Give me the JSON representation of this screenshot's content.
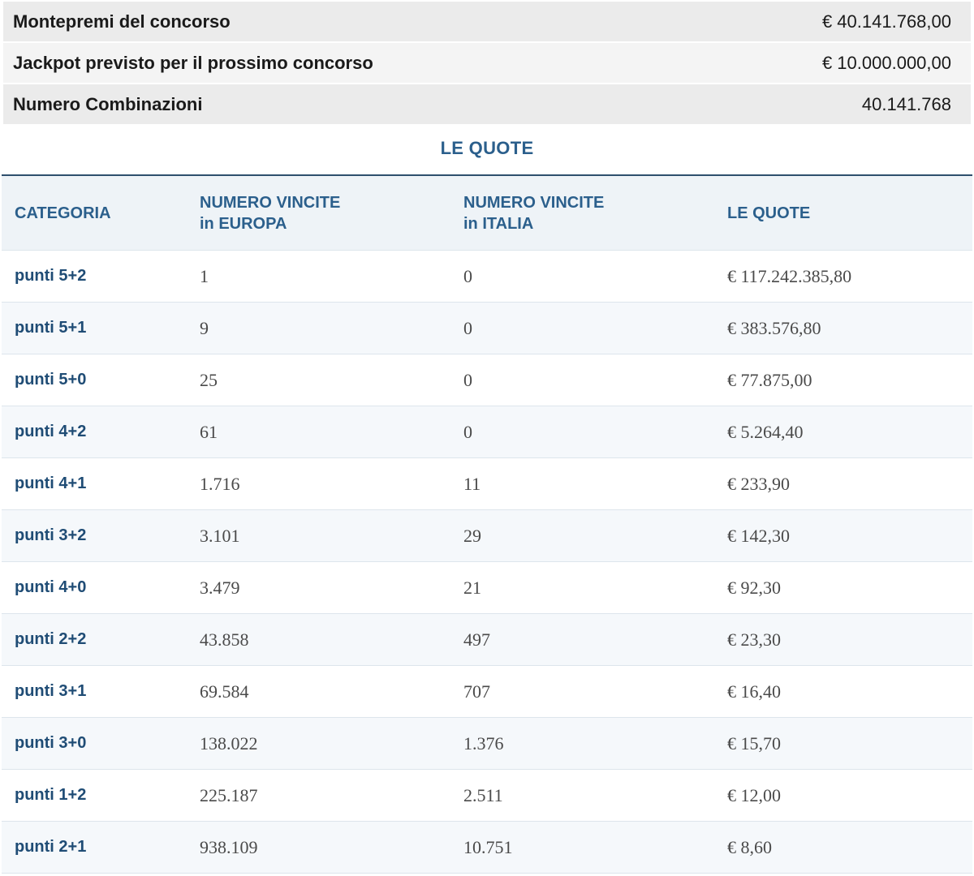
{
  "summary": [
    {
      "label": "Montepremi del concorso",
      "value": "€ 40.141.768,00"
    },
    {
      "label": "Jackpot previsto per il prossimo concorso",
      "value": "€ 10.000.000,00"
    },
    {
      "label": "Numero Combinazioni",
      "value": "40.141.768"
    }
  ],
  "section_title": "LE QUOTE",
  "table": {
    "headers": {
      "categoria": "CATEGORIA",
      "europa_line1": "NUMERO VINCITE",
      "europa_line2": "in EUROPA",
      "italia_line1": "NUMERO VINCITE",
      "italia_line2": "in ITALIA",
      "quote": "LE QUOTE"
    },
    "rows": [
      {
        "categoria": "punti 5+2",
        "europa": "1",
        "italia": "0",
        "quota": "€ 117.242.385,80"
      },
      {
        "categoria": "punti 5+1",
        "europa": "9",
        "italia": "0",
        "quota": "€ 383.576,80"
      },
      {
        "categoria": "punti 5+0",
        "europa": "25",
        "italia": "0",
        "quota": "€ 77.875,00"
      },
      {
        "categoria": "punti 4+2",
        "europa": "61",
        "italia": "0",
        "quota": "€ 5.264,40"
      },
      {
        "categoria": "punti 4+1",
        "europa": "1.716",
        "italia": "11",
        "quota": "€ 233,90"
      },
      {
        "categoria": "punti 3+2",
        "europa": "3.101",
        "italia": "29",
        "quota": "€ 142,30"
      },
      {
        "categoria": "punti 4+0",
        "europa": "3.479",
        "italia": "21",
        "quota": "€ 92,30"
      },
      {
        "categoria": "punti 2+2",
        "europa": "43.858",
        "italia": "497",
        "quota": "€ 23,30"
      },
      {
        "categoria": "punti 3+1",
        "europa": "69.584",
        "italia": "707",
        "quota": "€ 16,40"
      },
      {
        "categoria": "punti 3+0",
        "europa": "138.022",
        "italia": "1.376",
        "quota": "€ 15,70"
      },
      {
        "categoria": "punti 1+2",
        "europa": "225.187",
        "italia": "2.511",
        "quota": "€ 12,00"
      },
      {
        "categoria": "punti 2+1",
        "europa": "938.109",
        "italia": "10.751",
        "quota": "€ 8,60"
      }
    ]
  },
  "colors": {
    "header_blue": "#2b5f8c",
    "category_blue": "#1f4c75",
    "summary_bg_odd": "#ebebeb",
    "summary_bg_even": "#f4f4f4",
    "table_header_bg": "#eef3f7",
    "table_row_alt_bg": "#f5f8fb",
    "table_top_border": "#2e4f6d"
  }
}
